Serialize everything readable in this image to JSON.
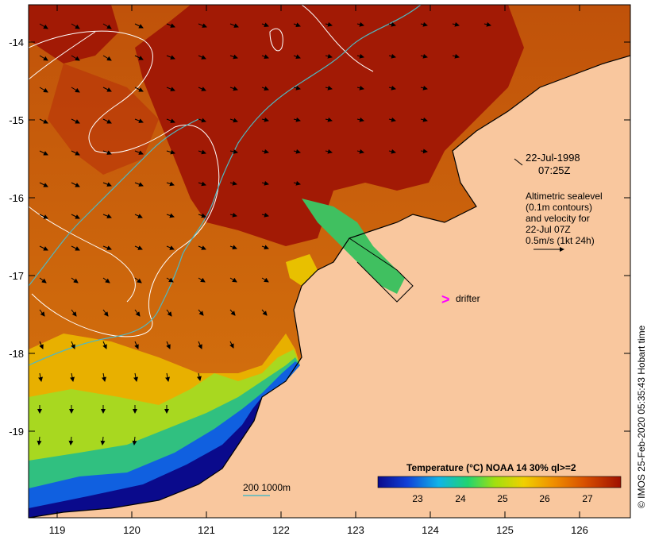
{
  "colors": {
    "land": "#f9c79e",
    "warm": "#a21a05",
    "contour": "#ffffff",
    "isobath": "#4fb8c2",
    "drifter": "#ff00ff",
    "coast": "#000000"
  },
  "annotation": {
    "date": "22-Jul-1998",
    "time": "07:25Z",
    "altimetry_lines": [
      "Altimetric sealevel",
      "(0.1m contours)",
      "and velocity for",
      "22-Jul 07Z",
      "0.5m/s (1kt 24h)"
    ]
  },
  "legend": {
    "drifter_symbol": ">",
    "drifter_label": "drifter",
    "isobath_label": "200  1000m"
  },
  "colorbar": {
    "title": "Temperature (°C) NOAA 14 30% ql>=2",
    "ticks": [
      "23",
      "24",
      "25",
      "26",
      "27"
    ],
    "stops": [
      "#0a0a8c",
      "#1040d8",
      "#10b4e8",
      "#20d470",
      "#a0e010",
      "#f0d000",
      "#f09000",
      "#d85000",
      "#a01000"
    ]
  },
  "credit": "© IMOS 25-Feb-2020 05:35:43 Hobart time",
  "map": {
    "lon_ticks": [
      "119",
      "120",
      "121",
      "122",
      "123",
      "124",
      "125",
      "126"
    ],
    "lat_ticks": [
      "-14",
      "-15",
      "-16",
      "-17",
      "-18",
      "-19"
    ]
  }
}
